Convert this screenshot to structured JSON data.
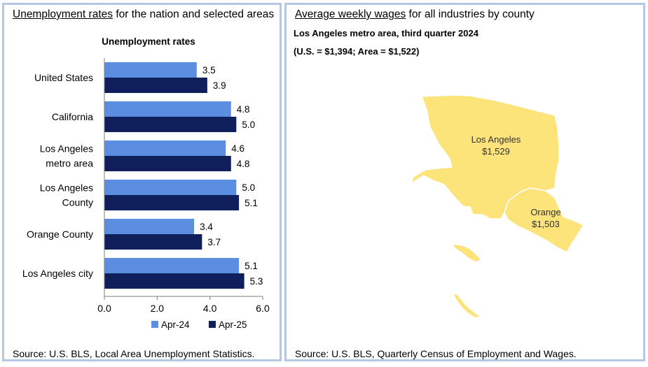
{
  "left_panel": {
    "title_underlined": "Unemployment rates",
    "title_rest": " for the nation and selected areas",
    "source": "Source: U.S. BLS, Local Area Unemployment Statistics."
  },
  "right_panel": {
    "title_underlined": "Average weekly wages",
    "title_rest": " for all industries by county",
    "subtitle_line1": "Los Angeles metro area, third quarter 2024",
    "subtitle_line2": "(U.S. = $1,394; Area = $1,522)",
    "source": "Source: U.S. BLS, Quarterly Census of Employment and Wages.",
    "map": {
      "fill_color": "#fce37a",
      "stroke_color": "#ffffff",
      "counties": [
        {
          "name": "Los Angeles",
          "wage": "$1,529"
        },
        {
          "name": "Orange",
          "wage": "$1,503"
        }
      ]
    }
  },
  "chart_data": {
    "type": "bar",
    "orientation": "horizontal",
    "title": "Unemployment rates",
    "categories": [
      [
        "United States"
      ],
      [
        "California"
      ],
      [
        "Los Angeles",
        "metro area"
      ],
      [
        "Los Angeles",
        "County"
      ],
      [
        "Orange County"
      ],
      [
        "Los Angeles city"
      ]
    ],
    "series": [
      {
        "name": "Apr-24",
        "color": "#5b8ee0",
        "values": [
          3.5,
          4.8,
          4.6,
          5.0,
          3.4,
          5.1
        ]
      },
      {
        "name": "Apr-25",
        "color": "#0f1f5c",
        "values": [
          3.9,
          5.0,
          4.8,
          5.1,
          3.7,
          5.3
        ]
      }
    ],
    "value_labels": [
      [
        "3.5",
        "4.8",
        "4.6",
        "5.0",
        "3.4",
        "5.1"
      ],
      [
        "3.9",
        "5.0",
        "4.8",
        "5.1",
        "3.7",
        "5.3"
      ]
    ],
    "xlim": [
      0,
      6
    ],
    "xticks": [
      0,
      2,
      4,
      6
    ],
    "xtick_labels": [
      "0.0",
      "2.0",
      "4.0",
      "6.0"
    ],
    "legend_position": "bottom",
    "grid": false
  }
}
